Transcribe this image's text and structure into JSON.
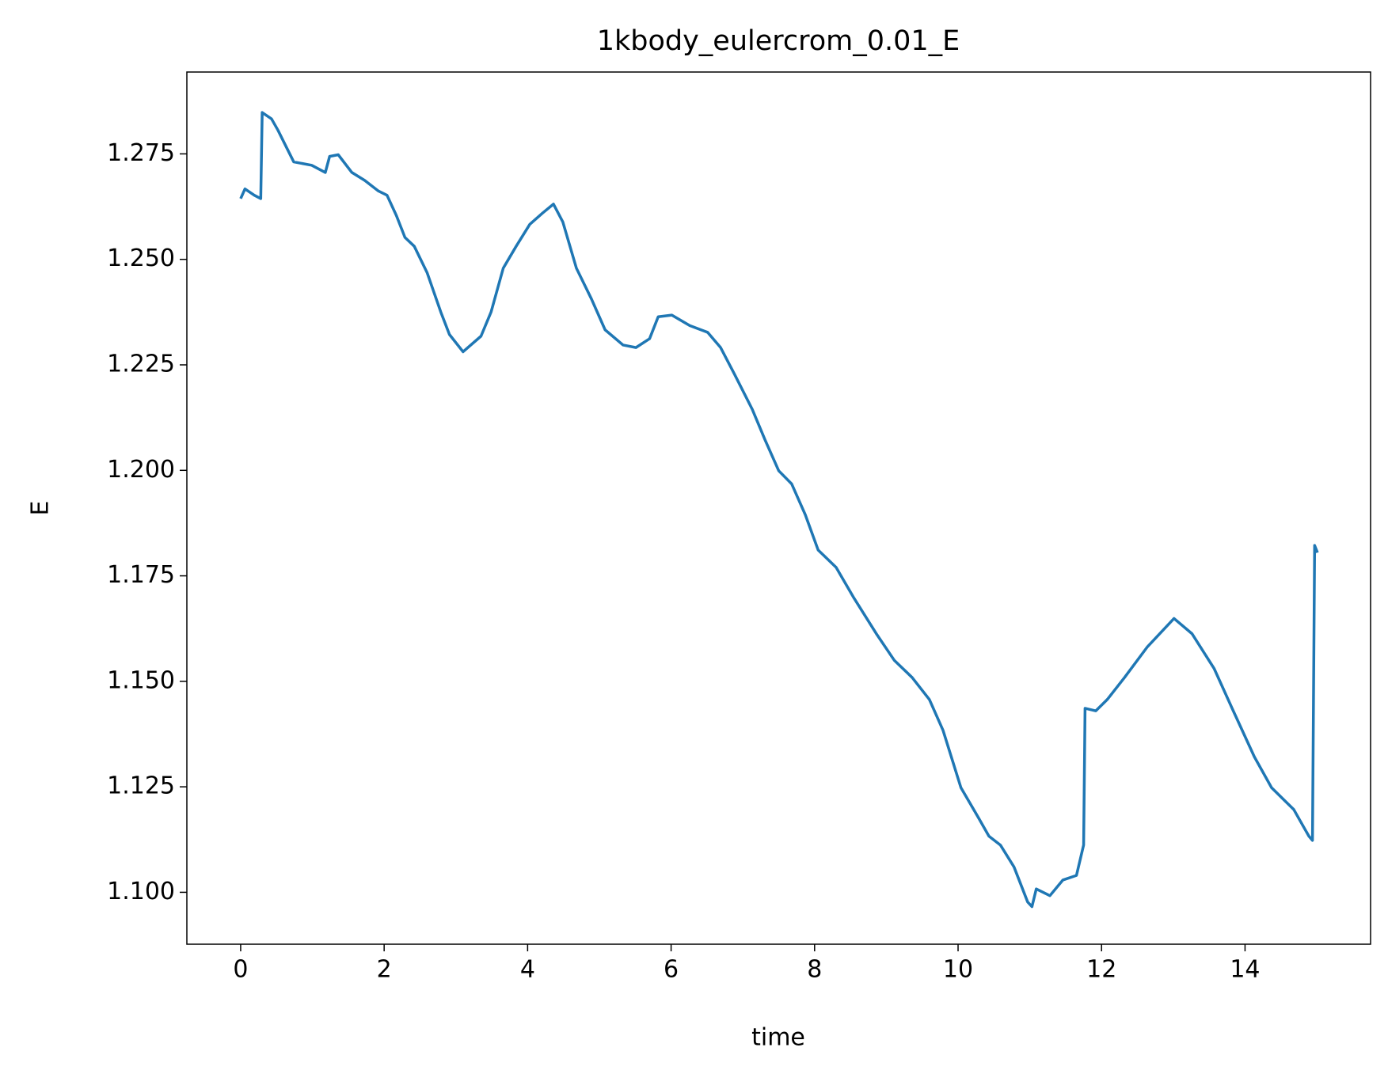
{
  "chart_data": {
    "type": "line",
    "title": "1kbody_eulercrom_0.01_E",
    "xlabel": "time",
    "ylabel": "E",
    "color": "#1f77b4",
    "x": [
      0,
      0.06,
      0.19,
      0.28,
      0.3,
      0.43,
      0.52,
      0.64,
      0.74,
      0.99,
      1.18,
      1.24,
      1.36,
      1.55,
      1.73,
      1.92,
      2.04,
      2.17,
      2.29,
      2.42,
      2.6,
      2.79,
      2.91,
      3.1,
      3.35,
      3.49,
      3.66,
      3.84,
      4.03,
      4.21,
      4.36,
      4.49,
      4.68,
      4.89,
      5.08,
      5.33,
      5.51,
      5.7,
      5.82,
      6.01,
      6.26,
      6.51,
      6.69,
      6.88,
      7.13,
      7.31,
      7.5,
      7.68,
      7.87,
      8.05,
      8.3,
      8.55,
      8.86,
      9.11,
      9.36,
      9.6,
      9.79,
      10.04,
      10.29,
      10.43,
      10.59,
      10.78,
      10.97,
      11.03,
      11.09,
      11.28,
      11.46,
      11.65,
      11.75,
      11.77,
      11.92,
      12.08,
      12.32,
      12.64,
      13.01,
      13.26,
      13.57,
      13.82,
      14.13,
      14.37,
      14.68,
      14.89,
      14.94,
      14.97,
      15.01
    ],
    "values": [
      1.2644,
      1.2667,
      1.2652,
      1.2644,
      1.2848,
      1.2833,
      1.2806,
      1.2765,
      1.2731,
      1.2723,
      1.2706,
      1.2744,
      1.2748,
      1.2706,
      1.2687,
      1.2662,
      1.2652,
      1.2604,
      1.2552,
      1.2531,
      1.2468,
      1.2375,
      1.2322,
      1.2281,
      1.2318,
      1.2375,
      1.2479,
      1.2531,
      1.2583,
      1.261,
      1.2631,
      1.2589,
      1.2479,
      1.2406,
      1.2333,
      1.2297,
      1.2291,
      1.2312,
      1.2364,
      1.2368,
      1.2343,
      1.2327,
      1.2291,
      1.2229,
      1.2145,
      1.2072,
      1.1999,
      1.1968,
      1.1895,
      1.1811,
      1.177,
      1.1697,
      1.1613,
      1.155,
      1.1509,
      1.1457,
      1.1384,
      1.1248,
      1.1175,
      1.1133,
      1.1112,
      1.106,
      1.0977,
      1.0966,
      1.1008,
      1.0992,
      1.1029,
      1.104,
      1.1112,
      1.1436,
      1.143,
      1.1457,
      1.1509,
      1.1582,
      1.1649,
      1.1613,
      1.153,
      1.1436,
      1.1321,
      1.1248,
      1.1196,
      1.1133,
      1.1123,
      1.1822,
      1.1805
    ],
    "xlim": [
      -0.75,
      15.75
    ],
    "xticks": [
      0,
      2,
      4,
      6,
      8,
      10,
      12,
      14
    ],
    "ylim": [
      1.0877,
      1.2944
    ],
    "yticks": [
      {
        "value": 1.1,
        "label": "1.100"
      },
      1.125,
      {
        "value": 1.15,
        "label": "1.150"
      },
      1.175,
      {
        "value": 1.2,
        "label": "1.200"
      },
      1.225,
      {
        "value": 1.25,
        "label": "1.250"
      },
      1.275
    ]
  }
}
